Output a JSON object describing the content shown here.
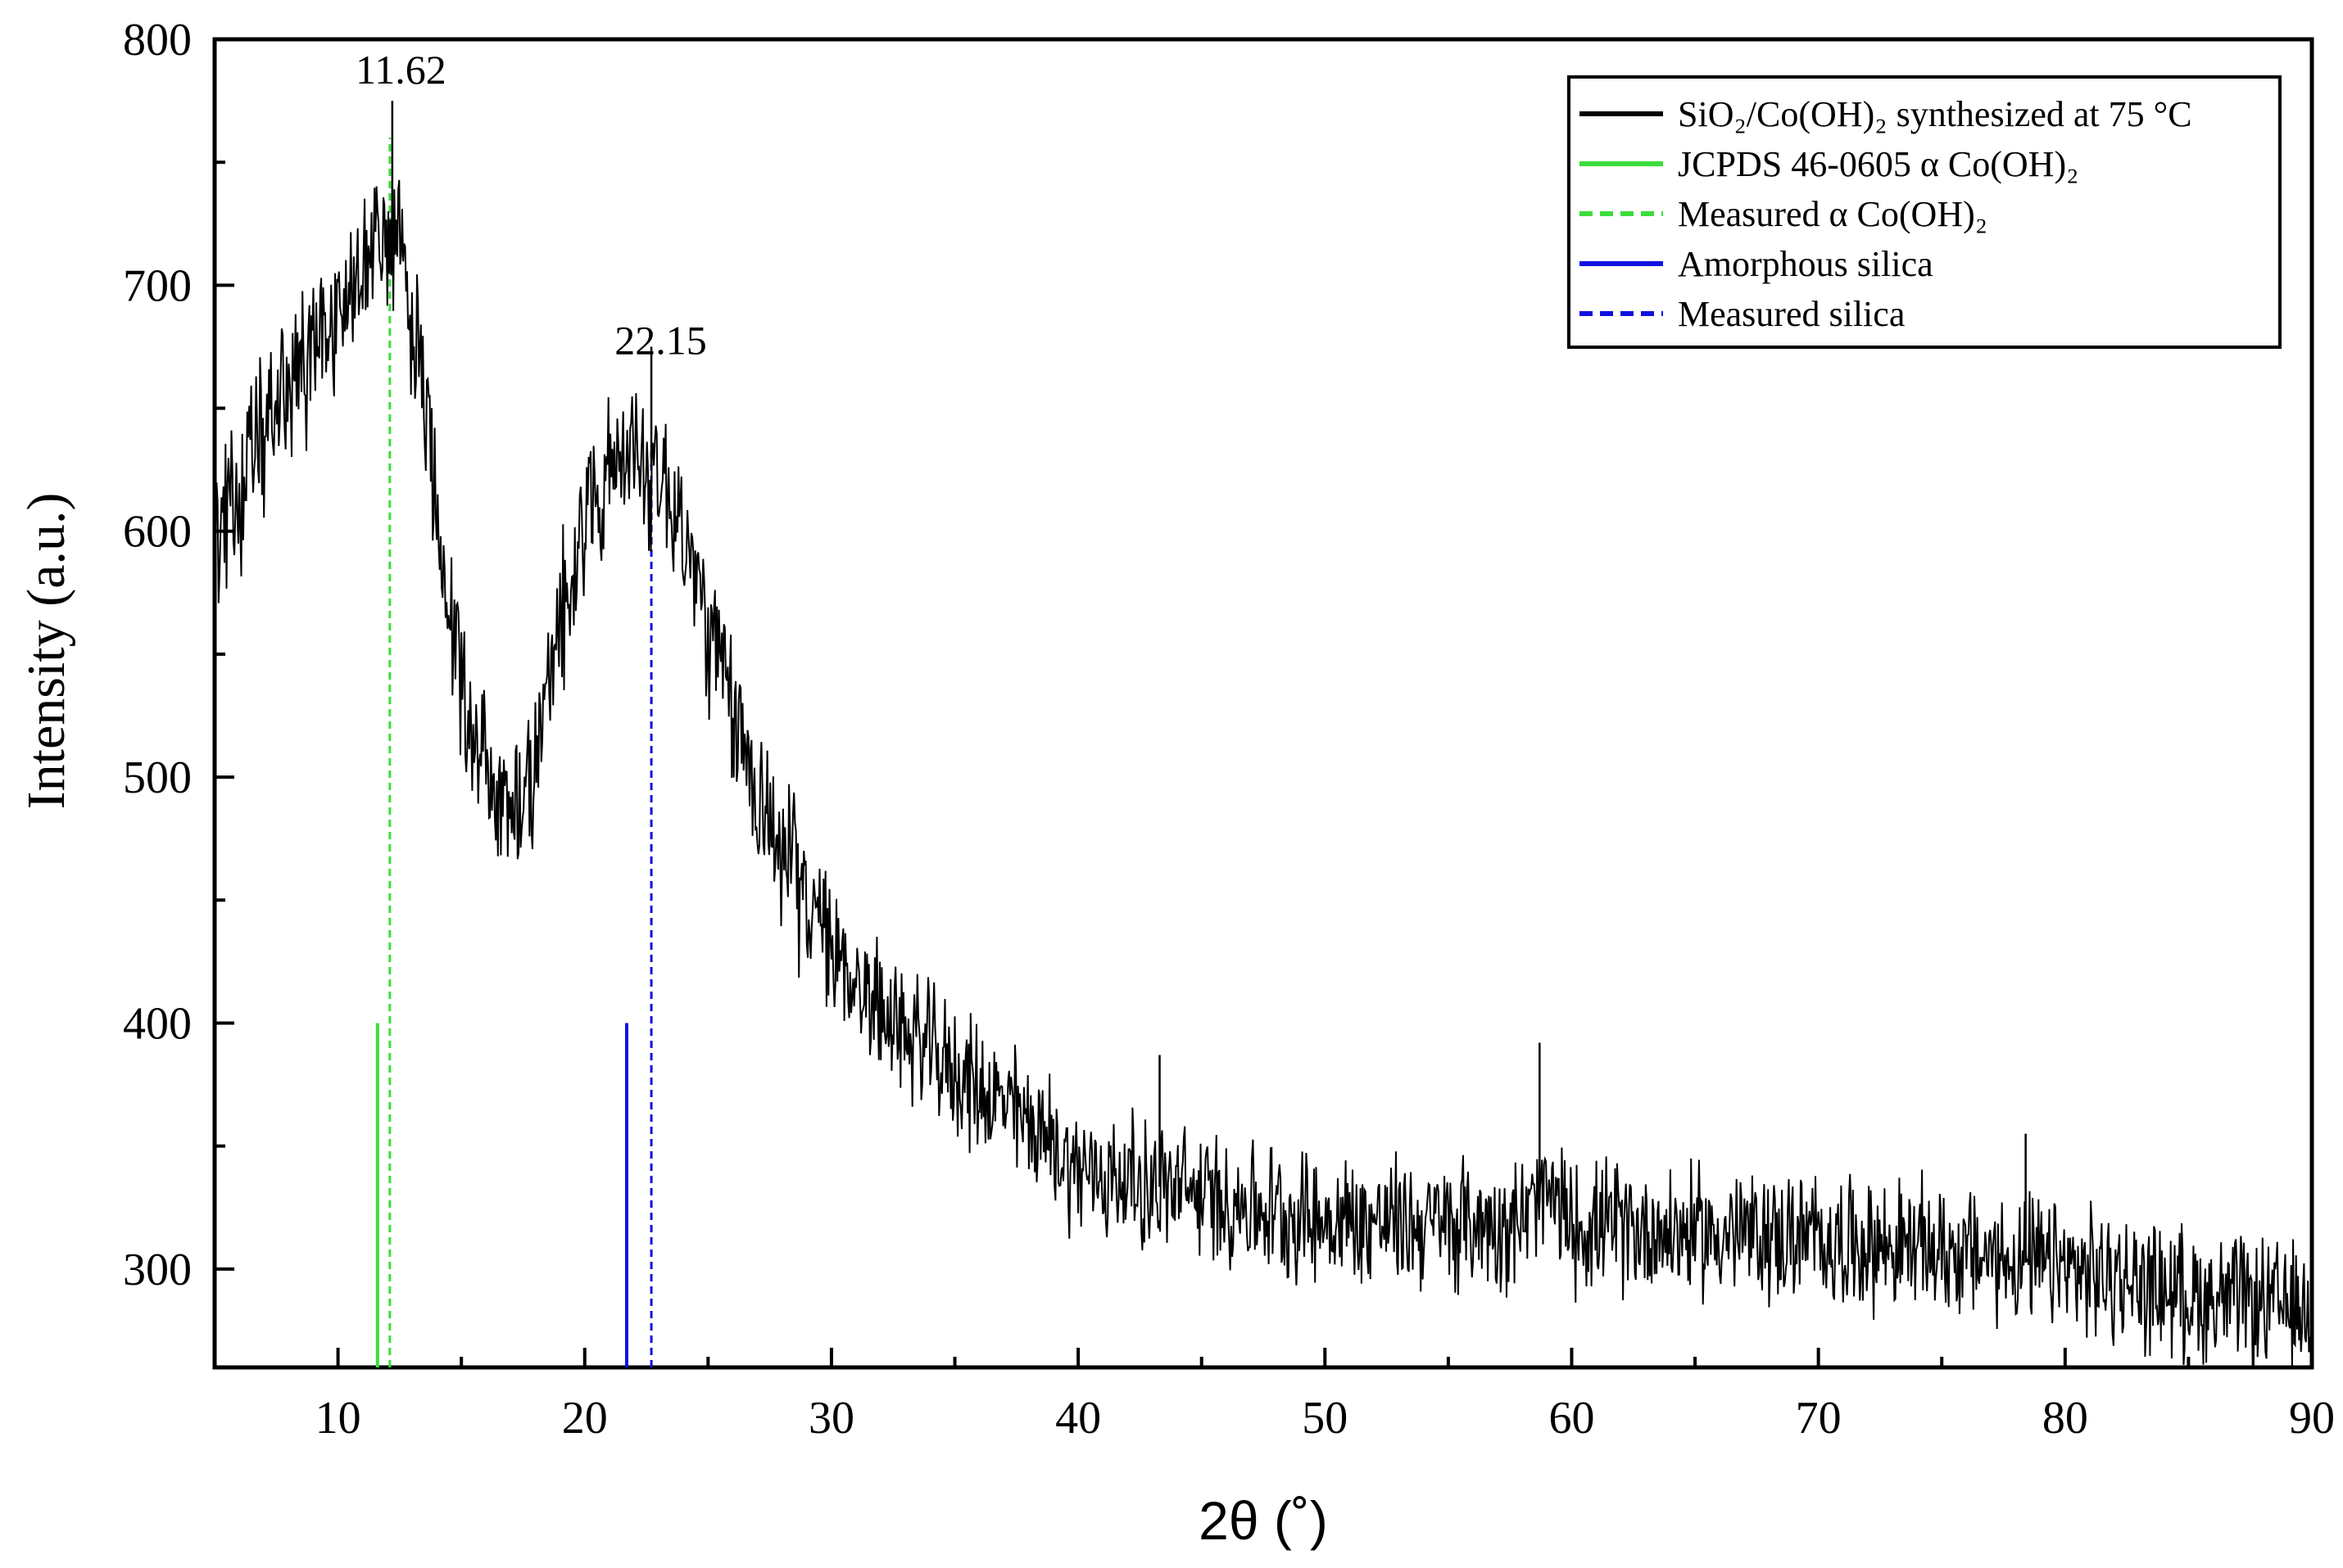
{
  "chart_data": {
    "type": "line",
    "title": "",
    "xlabel": "2θ (˚)",
    "ylabel": "Intensity (a.u.)",
    "xlim": [
      5,
      90
    ],
    "ylim": [
      260,
      800
    ],
    "x_ticks": [
      10,
      20,
      30,
      40,
      50,
      60,
      70,
      80,
      90
    ],
    "y_ticks": [
      300,
      400,
      500,
      600,
      700,
      800
    ],
    "x_minor_step": 5,
    "y_minor_step": 50,
    "legend_position": "top-right",
    "series": [
      {
        "name": "SiO₂/Co(OH)₂ synthesized at 75 °C",
        "color": "#000000",
        "style": "solid",
        "kind": "noisy-pattern",
        "x_step": 0.04,
        "noise_amplitude": 38,
        "anchor_points": [
          [
            5,
            600
          ],
          [
            6,
            615
          ],
          [
            7,
            640
          ],
          [
            8,
            660
          ],
          [
            9,
            672
          ],
          [
            10,
            690
          ],
          [
            11,
            705
          ],
          [
            11.62,
            720
          ],
          [
            12.5,
            712
          ],
          [
            13,
            690
          ],
          [
            14,
            610
          ],
          [
            15,
            540
          ],
          [
            16,
            500
          ],
          [
            17,
            485
          ],
          [
            18,
            505
          ],
          [
            19,
            560
          ],
          [
            20,
            610
          ],
          [
            21,
            625
          ],
          [
            22.15,
            628
          ],
          [
            23,
            625
          ],
          [
            24,
            600
          ],
          [
            25,
            560
          ],
          [
            26,
            525
          ],
          [
            27,
            495
          ],
          [
            28,
            470
          ],
          [
            30,
            430
          ],
          [
            32,
            405
          ],
          [
            35,
            380
          ],
          [
            38,
            360
          ],
          [
            40,
            340
          ],
          [
            45,
            330
          ],
          [
            50,
            320
          ],
          [
            55,
            318
          ],
          [
            58,
            320
          ],
          [
            59,
            330
          ],
          [
            60,
            318
          ],
          [
            65,
            315
          ],
          [
            70,
            312
          ],
          [
            75,
            308
          ],
          [
            80,
            300
          ],
          [
            85,
            290
          ],
          [
            90,
            282
          ]
        ],
        "spikes": [
          [
            12.2,
            775
          ],
          [
            22.7,
            675
          ],
          [
            43.3,
            387
          ],
          [
            58.7,
            392
          ],
          [
            78.4,
            355
          ]
        ]
      },
      {
        "name": "JCPDS 46-0605 α Co(OH)₂",
        "color": "#3cdd3c",
        "style": "solid",
        "kind": "reference-line",
        "x": 11.6,
        "y_range": [
          260,
          400
        ]
      },
      {
        "name": "Measured α Co(OH)₂",
        "color": "#3cdd3c",
        "style": "dashed",
        "kind": "reference-line",
        "x": 12.1,
        "y_range": [
          260,
          760
        ]
      },
      {
        "name": "Amorphous silica",
        "color": "#1010e0",
        "style": "solid",
        "kind": "reference-line",
        "x": 21.7,
        "y_range": [
          260,
          400
        ]
      },
      {
        "name": "Measured silica",
        "color": "#1010e0",
        "style": "dashed",
        "kind": "reference-line",
        "x": 22.7,
        "y_range": [
          260,
          635
        ]
      }
    ],
    "annotations": [
      {
        "text": "11.62",
        "x": 11.62,
        "y": 800
      },
      {
        "text": "22.15",
        "x": 22.15,
        "y": 690
      }
    ]
  }
}
